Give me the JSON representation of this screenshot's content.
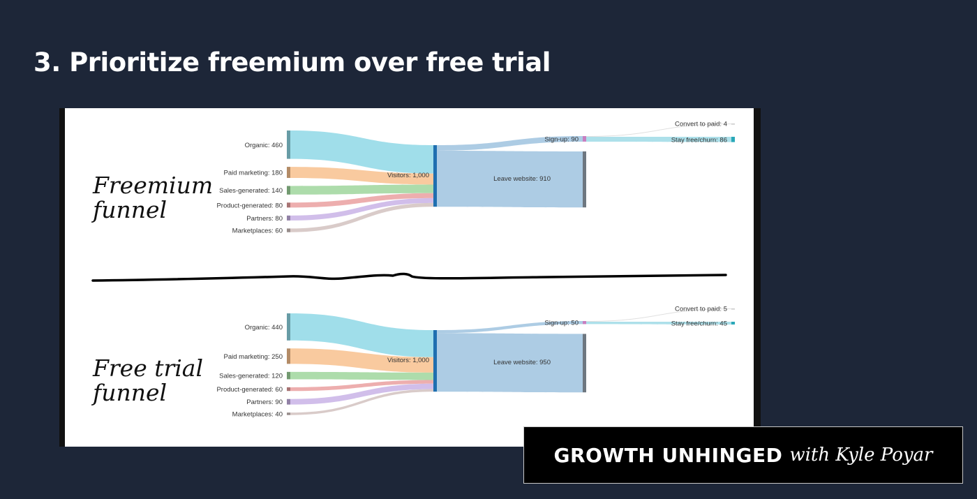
{
  "slide": {
    "title": "3. Prioritize freemium over free trial"
  },
  "colors": {
    "background": "#1d2638",
    "Organic": "#8fd8e6",
    "Paid marketing": "#f8c18e",
    "Sales-generated": "#9fd69c",
    "Product-generated": "#eaa0a0",
    "Partners": "#c9b3e6",
    "Marketplaces": "#d2c2bf",
    "Visitors": "#9fc3df",
    "Leave website": "#9fc3df",
    "Sign-up": "#9fc3df",
    "Convert to paid": "#d9d9d9",
    "Stay free/churn": "#9fdbe6"
  },
  "chart_data": [
    {
      "type": "sankey",
      "hand_label": [
        "Freemium",
        "funnel"
      ],
      "sources": [
        {
          "name": "Organic",
          "value": 460,
          "label": "Organic: 460"
        },
        {
          "name": "Paid marketing",
          "value": 180,
          "label": "Paid marketing: 180"
        },
        {
          "name": "Sales-generated",
          "value": 140,
          "label": "Sales-generated: 140"
        },
        {
          "name": "Product-generated",
          "value": 80,
          "label": "Product-generated: 80"
        },
        {
          "name": "Partners",
          "value": 80,
          "label": "Partners: 80"
        },
        {
          "name": "Marketplaces",
          "value": 60,
          "label": "Marketplaces: 60"
        }
      ],
      "visitors": {
        "value": 1000,
        "label": "Visitors: 1,000"
      },
      "signup": {
        "value": 90,
        "label": "Sign-up: 90"
      },
      "leave": {
        "value": 910,
        "label": "Leave website: 910"
      },
      "convert": {
        "value": 4,
        "label": "Convert to paid: 4"
      },
      "stay": {
        "value": 86,
        "label": "Stay free/churn: 86"
      }
    },
    {
      "type": "sankey",
      "hand_label": [
        "Free trial",
        "funnel"
      ],
      "sources": [
        {
          "name": "Organic",
          "value": 440,
          "label": "Organic: 440"
        },
        {
          "name": "Paid marketing",
          "value": 250,
          "label": "Paid marketing: 250"
        },
        {
          "name": "Sales-generated",
          "value": 120,
          "label": "Sales-generated: 120"
        },
        {
          "name": "Product-generated",
          "value": 60,
          "label": "Product-generated: 60"
        },
        {
          "name": "Partners",
          "value": 90,
          "label": "Partners: 90"
        },
        {
          "name": "Marketplaces",
          "value": 40,
          "label": "Marketplaces: 40"
        }
      ],
      "visitors": {
        "value": 1000,
        "label": "Visitors: 1,000"
      },
      "signup": {
        "value": 50,
        "label": "Sign-up: 50"
      },
      "leave": {
        "value": 950,
        "label": "Leave website: 950"
      },
      "convert": {
        "value": 5,
        "label": "Convert to paid: 5"
      },
      "stay": {
        "value": 45,
        "label": "Stay free/churn: 45"
      }
    }
  ],
  "brand": {
    "strong": "GROWTH UNHINGED",
    "with": "with Kyle Poyar"
  }
}
